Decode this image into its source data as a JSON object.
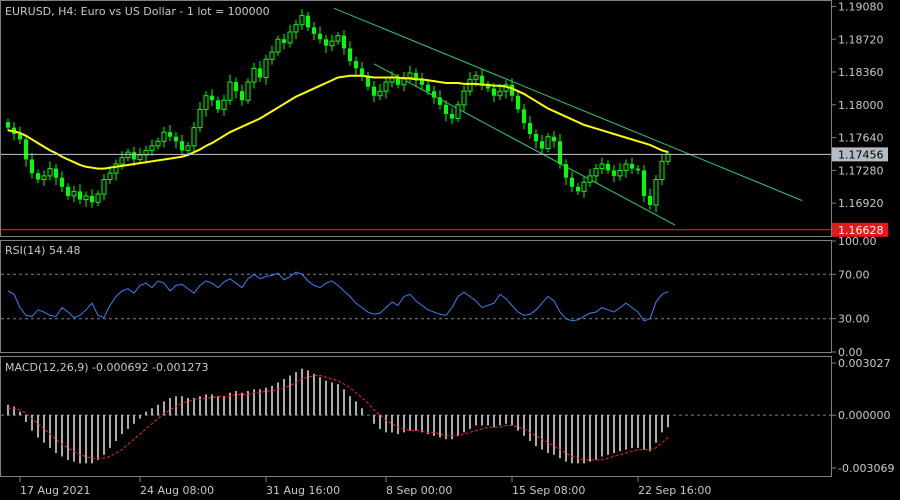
{
  "chart_data": [
    {
      "type": "candlestick",
      "title": "EURUSD, H4:  Euro vs US Dollar - 1 lot = 100000",
      "series": [
        {
          "name": "Price",
          "values": [
            1.1775,
            1.1768,
            1.1762,
            1.174,
            1.1725,
            1.1718,
            1.1722,
            1.173,
            1.172,
            1.171,
            1.17,
            1.1705,
            1.1696,
            1.17,
            1.1693,
            1.1702,
            1.1718,
            1.1725,
            1.1735,
            1.1742,
            1.1748,
            1.174,
            1.1745,
            1.175,
            1.1755,
            1.176,
            1.177,
            1.1765,
            1.176,
            1.175,
            1.1755,
            1.1775,
            1.1795,
            1.181,
            1.1805,
            1.1795,
            1.1805,
            1.1825,
            1.1815,
            1.1805,
            1.1825,
            1.184,
            1.183,
            1.185,
            1.1858,
            1.1872,
            1.1868,
            1.188,
            1.1888,
            1.1898,
            1.1885,
            1.1878,
            1.1872,
            1.1865,
            1.187,
            1.1876,
            1.1862,
            1.1848,
            1.184,
            1.1832,
            1.182,
            1.181,
            1.1815,
            1.1825,
            1.183,
            1.1822,
            1.183,
            1.1835,
            1.1828,
            1.1822,
            1.1815,
            1.1808,
            1.18,
            1.179,
            1.1785,
            1.18,
            1.1815,
            1.1828,
            1.1832,
            1.1822,
            1.1818,
            1.181,
            1.1815,
            1.1822,
            1.181,
            1.1795,
            1.178,
            1.1768,
            1.176,
            1.1752,
            1.1765,
            1.176,
            1.1735,
            1.172,
            1.171,
            1.1705,
            1.1715,
            1.1722,
            1.173,
            1.1735,
            1.1728,
            1.1722,
            1.1728,
            1.1735,
            1.173,
            1.1728,
            1.17,
            1.169,
            1.1718,
            1.1738,
            1.1746
          ]
        },
        {
          "name": "MA",
          "values": [
            1.1772,
            1.1771,
            1.1769,
            1.1766,
            1.1762,
            1.1758,
            1.1754,
            1.175,
            1.1747,
            1.1743,
            1.174,
            1.1737,
            1.1734,
            1.1732,
            1.1731,
            1.173,
            1.173,
            1.1731,
            1.1732,
            1.1733,
            1.1734,
            1.1735,
            1.1736,
            1.1737,
            1.1738,
            1.1739,
            1.174,
            1.1741,
            1.1742,
            1.1743,
            1.1745,
            1.1748,
            1.1751,
            1.1755,
            1.1758,
            1.1762,
            1.1766,
            1.177,
            1.1773,
            1.1776,
            1.1779,
            1.1782,
            1.1785,
            1.1789,
            1.1793,
            1.1797,
            1.1801,
            1.1805,
            1.1809,
            1.1812,
            1.1815,
            1.1818,
            1.1821,
            1.1824,
            1.1827,
            1.183,
            1.1831,
            1.1832,
            1.1832,
            1.1832,
            1.1831,
            1.183,
            1.183,
            1.183,
            1.183,
            1.183,
            1.1829,
            1.1829,
            1.1828,
            1.1828,
            1.1827,
            1.1826,
            1.1825,
            1.1824,
            1.1824,
            1.1824,
            1.1823,
            1.1823,
            1.1823,
            1.1822,
            1.1822,
            1.1821,
            1.1821,
            1.182,
            1.1818,
            1.1815,
            1.1812,
            1.1808,
            1.1804,
            1.18,
            1.1796,
            1.1793,
            1.179,
            1.1787,
            1.1784,
            1.1781,
            1.1778,
            1.1776,
            1.1774,
            1.1772,
            1.177,
            1.1768,
            1.1766,
            1.1764,
            1.1762,
            1.176,
            1.1758,
            1.1756,
            1.1753,
            1.175,
            1.1748
          ]
        }
      ],
      "y_ticks": [
        "1.19080",
        "1.18720",
        "1.18360",
        "1.18000",
        "1.17640",
        "1.17280",
        "1.16920"
      ],
      "ylim": [
        1.1656,
        1.1914
      ],
      "current_price_label": "1.17456",
      "current_price": 1.17456,
      "support_label": "1.16628",
      "support_price": 1.16628,
      "channel_upper": [
        [
          1.1906,
          1.1695
        ],
        [
          1.1906,
          1.1695
        ]
      ],
      "channel": {
        "upper_start": 1.1906,
        "upper_end": 1.1695,
        "lower_start": 1.1845,
        "lower_end": 1.1668
      },
      "colors": {
        "bull": "#00ff00",
        "bear": "#00ff00",
        "ma": "#ffff00",
        "channel": "#2ecc71",
        "support": "#ff2020",
        "current": "#c0c8d0"
      }
    },
    {
      "type": "line",
      "title": "RSI(14) 54.48",
      "series": [
        {
          "name": "RSI",
          "values": [
            55,
            52,
            40,
            33,
            32,
            38,
            36,
            33,
            32,
            40,
            36,
            31,
            33,
            38,
            44,
            33,
            31,
            42,
            50,
            55,
            57,
            53,
            60,
            62,
            58,
            64,
            62,
            55,
            60,
            61,
            57,
            53,
            60,
            64,
            62,
            58,
            63,
            66,
            62,
            58,
            66,
            70,
            66,
            68,
            69,
            71,
            65,
            68,
            72,
            70,
            64,
            60,
            58,
            62,
            64,
            60,
            55,
            50,
            44,
            40,
            36,
            34,
            35,
            40,
            45,
            42,
            50,
            52,
            46,
            42,
            38,
            36,
            34,
            33,
            40,
            50,
            54,
            50,
            46,
            40,
            42,
            44,
            52,
            48,
            42,
            36,
            33,
            34,
            38,
            44,
            50,
            46,
            36,
            30,
            28,
            29,
            32,
            35,
            36,
            40,
            38,
            36,
            40,
            44,
            40,
            36,
            28,
            30,
            45,
            52,
            54.48
          ]
        }
      ],
      "y_ticks": [
        "100.00",
        "70.00",
        "30.00",
        "0.00"
      ],
      "ylim": [
        0,
        100
      ],
      "levels": [
        70,
        30
      ],
      "colors": {
        "line": "#3a7fff",
        "level": "#808080"
      }
    },
    {
      "type": "bar",
      "title": "MACD(12,26,9) -0.000692 -0.001273",
      "series": [
        {
          "name": "MACD",
          "values": [
            0.0006,
            0.0005,
            0.0002,
            -0.0004,
            -0.0009,
            -0.0013,
            -0.0016,
            -0.0019,
            -0.0022,
            -0.0024,
            -0.0026,
            -0.0027,
            -0.0028,
            -0.0028,
            -0.0028,
            -0.0026,
            -0.0023,
            -0.0019,
            -0.0015,
            -0.0011,
            -0.0008,
            -0.0005,
            -0.0002,
            0.0002,
            0.0004,
            0.0006,
            0.0008,
            0.001,
            0.0011,
            0.0011,
            0.001,
            0.001,
            0.0011,
            0.0012,
            0.0012,
            0.0011,
            0.0011,
            0.0013,
            0.0014,
            0.0013,
            0.0014,
            0.0015,
            0.0015,
            0.0016,
            0.0017,
            0.0019,
            0.0021,
            0.0023,
            0.0025,
            0.0027,
            0.0026,
            0.0024,
            0.0022,
            0.002,
            0.0019,
            0.0018,
            0.0015,
            0.0011,
            0.0008,
            0.0004,
            0.0,
            -0.0005,
            -0.0008,
            -0.001,
            -0.001,
            -0.0011,
            -0.001,
            -0.0009,
            -0.0009,
            -0.001,
            -0.0011,
            -0.0012,
            -0.0013,
            -0.0014,
            -0.0014,
            -0.0012,
            -0.001,
            -0.0008,
            -0.0006,
            -0.0006,
            -0.0006,
            -0.0007,
            -0.0006,
            -0.0005,
            -0.0006,
            -0.0009,
            -0.0012,
            -0.0015,
            -0.0018,
            -0.002,
            -0.0022,
            -0.0023,
            -0.0025,
            -0.0027,
            -0.0028,
            -0.0028,
            -0.0028,
            -0.0027,
            -0.0026,
            -0.0024,
            -0.0023,
            -0.0022,
            -0.0021,
            -0.002,
            -0.0019,
            -0.0019,
            -0.002,
            -0.0021,
            -0.0016,
            -0.001,
            -0.0007
          ]
        },
        {
          "name": "Signal",
          "values": [
            0.0004,
            0.0004,
            0.0003,
            0.0001,
            -0.0002,
            -0.0005,
            -0.0008,
            -0.0011,
            -0.0014,
            -0.0017,
            -0.0019,
            -0.0021,
            -0.0023,
            -0.0024,
            -0.0025,
            -0.0025,
            -0.0025,
            -0.0024,
            -0.0022,
            -0.002,
            -0.0017,
            -0.0014,
            -0.0011,
            -0.0008,
            -0.0005,
            -0.0002,
            0.0001,
            0.0003,
            0.0005,
            0.0007,
            0.0008,
            0.0009,
            0.0009,
            0.001,
            0.001,
            0.0011,
            0.0011,
            0.0011,
            0.0012,
            0.0012,
            0.0012,
            0.0013,
            0.0013,
            0.0014,
            0.0014,
            0.0015,
            0.0016,
            0.0017,
            0.0019,
            0.0021,
            0.0022,
            0.0023,
            0.0023,
            0.0022,
            0.0021,
            0.002,
            0.0018,
            0.0016,
            0.0013,
            0.001,
            0.0007,
            0.0003,
            0.0,
            -0.0003,
            -0.0005,
            -0.0007,
            -0.0008,
            -0.0009,
            -0.0009,
            -0.0009,
            -0.001,
            -0.001,
            -0.0011,
            -0.0012,
            -0.0012,
            -0.0012,
            -0.0011,
            -0.001,
            -0.0009,
            -0.0008,
            -0.0007,
            -0.0007,
            -0.0007,
            -0.0006,
            -0.0006,
            -0.0007,
            -0.0008,
            -0.001,
            -0.0012,
            -0.0014,
            -0.0016,
            -0.0018,
            -0.002,
            -0.0022,
            -0.0024,
            -0.0025,
            -0.0026,
            -0.0026,
            -0.0026,
            -0.0026,
            -0.0025,
            -0.0024,
            -0.0023,
            -0.0022,
            -0.0021,
            -0.002,
            -0.002,
            -0.002,
            -0.0019,
            -0.0016,
            -0.0013
          ]
        }
      ],
      "y_ticks": [
        "0.003027",
        "0.000000",
        "-0.003069"
      ],
      "ylim": [
        -0.003069,
        0.003027
      ],
      "colors": {
        "hist": "#d8d8d8",
        "signal": "#ff2020",
        "zero": "#808080"
      }
    }
  ],
  "x_ticks": [
    {
      "label": "17 Aug 2021",
      "index": 2
    },
    {
      "label": "24 Aug 08:00",
      "index": 22
    },
    {
      "label": "31 Aug 16:00",
      "index": 43
    },
    {
      "label": "8 Sep 00:00",
      "index": 63
    },
    {
      "label": "15 Sep 08:00",
      "index": 84
    },
    {
      "label": "22 Sep 16:00",
      "index": 105
    }
  ]
}
